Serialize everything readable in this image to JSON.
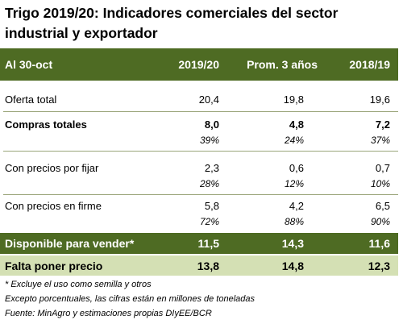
{
  "title_line1": "Trigo 2019/20: Indicadores comerciales del sector",
  "title_line2": "industrial y exportador",
  "header": {
    "label": "Al 30-oct",
    "col1": "2019/20",
    "col2": "Prom. 3 años",
    "col3": "2018/19"
  },
  "rows": [
    {
      "label": "Oferta total",
      "v1": "20,4",
      "v2": "19,8",
      "v3": "19,6"
    },
    {
      "label": "Compras totales",
      "v1": "8,0",
      "v2": "4,8",
      "v3": "7,2",
      "p1": "39%",
      "p2": "24%",
      "p3": "37%"
    },
    {
      "label": "Con precios por fijar",
      "v1": "2,3",
      "v2": "0,6",
      "v3": "0,7",
      "p1": "28%",
      "p2": "12%",
      "p3": "10%"
    },
    {
      "label": "Con precios en firme",
      "v1": "5,8",
      "v2": "4,2",
      "v3": "6,5",
      "p1": "72%",
      "p2": "88%",
      "p3": "90%"
    }
  ],
  "disponible": {
    "label": "Disponible para vender*",
    "v1": "11,5",
    "v2": "14,3",
    "v3": "11,6"
  },
  "falta": {
    "label": "Falta poner precio",
    "v1": "13,8",
    "v2": "14,8",
    "v3": "12,3"
  },
  "notes": [
    "* Excluye el uso como semilla y otros",
    "Excepto porcentuales, las cifras están en millones de toneladas",
    "Fuente: MinAgro y estimaciones propias DIyEE/BCR"
  ],
  "colors": {
    "dark_green": "#4e6b23",
    "light_green": "#d4e0b4",
    "separator": "#9aa57a"
  }
}
